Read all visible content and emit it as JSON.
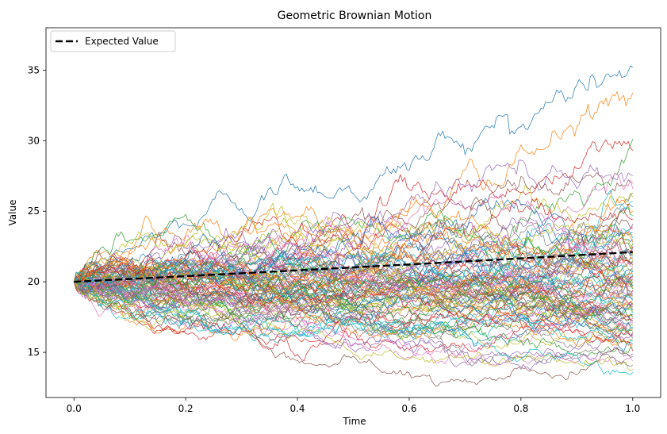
{
  "chart_data": {
    "type": "line",
    "title": "Geometric Brownian Motion",
    "xlabel": "Time",
    "ylabel": "Value",
    "xlim": [
      -0.05,
      1.05
    ],
    "ylim": [
      11.8,
      38.0
    ],
    "xticks": [
      0.0,
      0.2,
      0.4,
      0.6,
      0.8,
      1.0
    ],
    "xtick_labels": [
      "0.0",
      "0.2",
      "0.4",
      "0.6",
      "0.8",
      "1.0"
    ],
    "yticks": [
      15,
      20,
      25,
      30,
      35
    ],
    "ytick_labels": [
      "15",
      "20",
      "25",
      "30",
      "35"
    ],
    "grid": false,
    "legend": {
      "placement": "top-left",
      "entries": [
        "Expected Value"
      ]
    },
    "expected_value": {
      "name": "Expected Value",
      "color": "#000000",
      "dash": "dashed",
      "x": [
        0.0,
        0.2,
        0.4,
        0.6,
        0.8,
        1.0
      ],
      "y": [
        20.0,
        20.4,
        20.81,
        21.23,
        21.66,
        22.1
      ]
    },
    "simulated_paths": {
      "count": 100,
      "x_start": 0.0,
      "x_end": 1.0,
      "start_value": 20.0,
      "final_values": [
        35.2,
        33.4,
        30.1,
        29.3,
        27.5,
        27.0,
        26.6,
        26.3,
        26.0,
        25.7,
        25.3,
        25.0,
        24.7,
        24.4,
        24.1,
        23.9,
        23.7,
        23.5,
        23.3,
        23.1,
        23.0,
        22.8,
        22.7,
        22.5,
        22.4,
        22.2,
        22.1,
        22.0,
        21.9,
        21.8,
        21.7,
        21.6,
        21.5,
        21.4,
        21.3,
        21.2,
        21.1,
        21.0,
        20.9,
        20.8,
        20.7,
        20.6,
        20.5,
        20.4,
        20.3,
        20.2,
        20.1,
        20.0,
        19.9,
        19.8,
        19.7,
        19.6,
        19.5,
        19.4,
        19.3,
        19.2,
        19.1,
        19.0,
        18.9,
        18.8,
        18.7,
        18.6,
        18.5,
        18.4,
        18.3,
        18.2,
        18.1,
        18.0,
        17.9,
        17.8,
        17.7,
        17.6,
        17.5,
        17.4,
        17.3,
        17.2,
        17.1,
        17.0,
        16.9,
        16.8,
        16.7,
        16.6,
        16.5,
        16.4,
        16.3,
        16.2,
        16.1,
        16.0,
        15.9,
        15.8,
        15.6,
        15.5,
        15.3,
        15.1,
        14.9,
        14.7,
        14.4,
        14.1,
        13.8,
        13.6
      ]
    },
    "colors": [
      "#1f77b4",
      "#ff7f0e",
      "#2ca02c",
      "#d62728",
      "#9467bd",
      "#8c564b",
      "#e377c2",
      "#7f7f7f",
      "#bcbd22",
      "#17becf"
    ]
  }
}
